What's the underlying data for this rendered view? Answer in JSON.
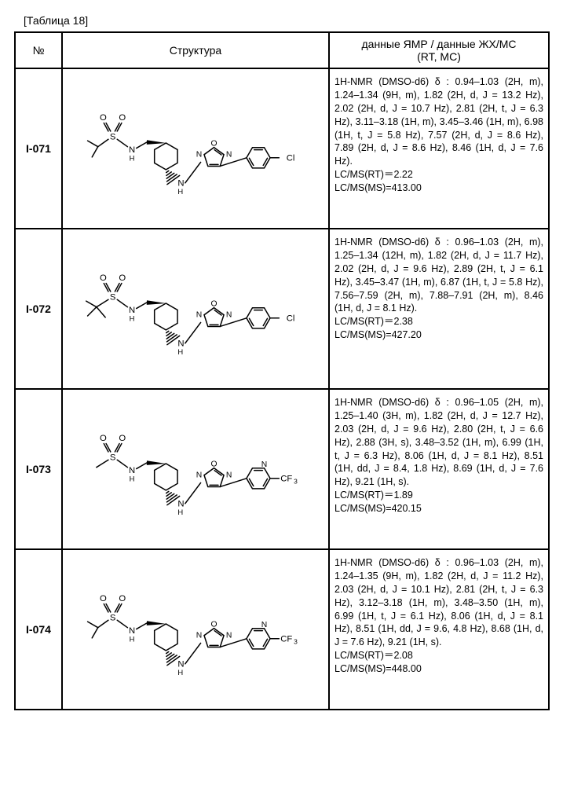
{
  "table_label": "[Таблица 18]",
  "headers": {
    "no": "№",
    "structure": "Структура",
    "data": "данные ЯМР / данные ЖХ/МС\n(RT, МС)"
  },
  "rows": [
    {
      "id": "I-071",
      "nmr": "1H-NMR (DMSO-d6) δ : 0.94–1.03 (2H, m), 1.24–1.34 (9H, m), 1.82 (2H, d, J = 13.2 Hz), 2.02 (2H, d, J = 10.7 Hz), 2.81 (2H, t, J = 6.3 Hz), 3.11–3.18 (1H, m), 3.45–3.46 (1H, m), 6.98 (1H, t, J = 5.8 Hz), 7.57 (2H, d, J = 8.6 Hz), 7.89 (2H, d, J = 8.6 Hz), 8.46 (1H, d, J = 7.6 Hz).",
      "lcms_rt": "LC/MS(RT)＝2.22",
      "lcms_ms": "LC/MS(MS)=413.00"
    },
    {
      "id": "I-072",
      "nmr": "1H-NMR (DMSO-d6) δ : 0.96–1.03 (2H, m), 1.25–1.34 (12H, m), 1.82 (2H, d, J = 11.7 Hz), 2.02 (2H, d, J = 9.6 Hz), 2.89 (2H, t, J = 6.1 Hz), 3.45–3.47 (1H, m), 6.87 (1H, t, J = 5.8 Hz), 7.56–7.59 (2H, m), 7.88–7.91 (2H, m), 8.46 (1H, d, J = 8.1 Hz).",
      "lcms_rt": "LC/MS(RT)＝2.38",
      "lcms_ms": "LC/MS(MS)=427.20"
    },
    {
      "id": "I-073",
      "nmr": "1H-NMR (DMSO-d6) δ : 0.96–1.05 (2H, m), 1.25–1.40 (3H, m), 1.82 (2H, d, J = 12.7 Hz), 2.03 (2H, d, J = 9.6 Hz), 2.80 (2H, t, J = 6.6 Hz), 2.88 (3H, s), 3.48–3.52 (1H, m), 6.99 (1H, t, J = 6.3 Hz), 8.06 (1H, d, J = 8.1 Hz), 8.51 (1H, dd, J = 8.4, 1.8 Hz), 8.69 (1H, d, J = 7.6 Hz), 9.21 (1H, s).",
      "lcms_rt": "LC/MS(RT)＝1.89",
      "lcms_ms": "LC/MS(MS)=420.15"
    },
    {
      "id": "I-074",
      "nmr": "1H-NMR (DMSO-d6) δ : 0.96–1.03 (2H, m), 1.24–1.35 (9H, m), 1.82 (2H, d, J = 11.2 Hz), 2.03 (2H, d, J = 10.1 Hz), 2.81 (2H, t, J = 6.3 Hz), 3.12–3.18 (1H, m), 3.48–3.50 (1H, m), 6.99 (1H, t, J = 6.1 Hz), 8.06 (1H, d, J = 8.1 Hz), 8.51 (1H, dd, J = 9.6, 4.8 Hz), 8.68 (1H, d, J = 7.6 Hz), 9.21 (1H, s).",
      "lcms_rt": "LC/MS(RT)＝2.08",
      "lcms_ms": "LC/MS(MS)=448.00"
    }
  ],
  "structures": {
    "I-071": {
      "left": "isopropyl",
      "right": "phenyl_cl"
    },
    "I-072": {
      "left": "tbutyl",
      "right": "phenyl_cl"
    },
    "I-073": {
      "left": "methyl",
      "right": "pyridyl_cf3"
    },
    "I-074": {
      "left": "isopropyl",
      "right": "pyridyl_cf3"
    }
  },
  "colors": {
    "stroke": "#000000",
    "text": "#000000",
    "bg": "#ffffff"
  }
}
